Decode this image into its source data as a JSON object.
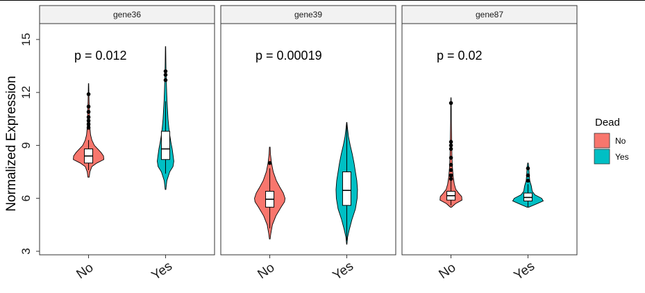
{
  "chart_data": {
    "type": "violin",
    "ylabel": "Normalized Expression",
    "ylim": [
      2.8,
      15.9
    ],
    "yticks": [
      3,
      6,
      9,
      12,
      15
    ],
    "categories": [
      "No",
      "Yes"
    ],
    "legend": {
      "title": "Dead",
      "position": "right",
      "items": [
        {
          "label": "No",
          "color": "#F8766D"
        },
        {
          "label": "Yes",
          "color": "#00BFC4"
        }
      ]
    },
    "panels": [
      {
        "title": "gene36",
        "annotation": "p = 0.012",
        "groups": [
          {
            "category": "No",
            "color": "#F8766D",
            "violin": [
              [
                7.2,
                0.04
              ],
              [
                7.5,
                0.08
              ],
              [
                7.8,
                0.2
              ],
              [
                8.0,
                0.5
              ],
              [
                8.2,
                0.92
              ],
              [
                8.4,
                0.9
              ],
              [
                8.6,
                0.75
              ],
              [
                8.8,
                0.55
              ],
              [
                9.0,
                0.35
              ],
              [
                9.3,
                0.2
              ],
              [
                9.6,
                0.12
              ],
              [
                10.0,
                0.08
              ],
              [
                10.5,
                0.06
              ],
              [
                11.0,
                0.05
              ],
              [
                11.5,
                0.03
              ],
              [
                12.0,
                0.02
              ],
              [
                12.5,
                0.01
              ]
            ],
            "box": {
              "q1": 8.0,
              "median": 8.4,
              "q3": 8.8,
              "whisker_low": 7.6,
              "whisker_high": 9.3
            },
            "outliers": [
              10.0,
              10.2,
              10.4,
              10.6,
              10.9,
              11.2,
              11.9
            ]
          },
          {
            "category": "Yes",
            "color": "#00BFC4",
            "violin": [
              [
                6.5,
                0.02
              ],
              [
                7.0,
                0.08
              ],
              [
                7.5,
                0.25
              ],
              [
                7.8,
                0.45
              ],
              [
                8.1,
                0.5
              ],
              [
                8.4,
                0.46
              ],
              [
                8.8,
                0.4
              ],
              [
                9.2,
                0.32
              ],
              [
                9.6,
                0.25
              ],
              [
                10.0,
                0.2
              ],
              [
                10.5,
                0.15
              ],
              [
                11.0,
                0.12
              ],
              [
                11.5,
                0.09
              ],
              [
                12.0,
                0.07
              ],
              [
                12.6,
                0.05
              ],
              [
                13.2,
                0.03
              ],
              [
                13.8,
                0.02
              ],
              [
                14.6,
                0.01
              ]
            ],
            "box": {
              "q1": 8.2,
              "median": 8.8,
              "q3": 9.8,
              "whisker_low": 7.4,
              "whisker_high": 11.5
            },
            "outliers": [
              12.7,
              13.0,
              13.2
            ]
          }
        ]
      },
      {
        "title": "gene39",
        "annotation": "p = 0.00019",
        "groups": [
          {
            "category": "No",
            "color": "#F8766D",
            "violin": [
              [
                3.7,
                0.02
              ],
              [
                4.0,
                0.06
              ],
              [
                4.5,
                0.15
              ],
              [
                5.0,
                0.35
              ],
              [
                5.5,
                0.65
              ],
              [
                5.8,
                0.85
              ],
              [
                6.0,
                0.88
              ],
              [
                6.3,
                0.78
              ],
              [
                6.6,
                0.6
              ],
              [
                7.0,
                0.38
              ],
              [
                7.5,
                0.2
              ],
              [
                8.0,
                0.1
              ],
              [
                8.5,
                0.04
              ],
              [
                8.9,
                0.02
              ]
            ],
            "box": {
              "q1": 5.5,
              "median": 5.95,
              "q3": 6.4,
              "whisker_low": 4.3,
              "whisker_high": 7.7
            },
            "outliers": [
              8.0
            ]
          },
          {
            "category": "Yes",
            "color": "#00BFC4",
            "violin": [
              [
                3.4,
                0.01
              ],
              [
                3.8,
                0.05
              ],
              [
                4.2,
                0.14
              ],
              [
                4.8,
                0.3
              ],
              [
                5.4,
                0.5
              ],
              [
                6.0,
                0.6
              ],
              [
                6.5,
                0.62
              ],
              [
                7.0,
                0.58
              ],
              [
                7.5,
                0.5
              ],
              [
                8.0,
                0.42
              ],
              [
                8.5,
                0.32
              ],
              [
                9.0,
                0.2
              ],
              [
                9.5,
                0.1
              ],
              [
                10.0,
                0.04
              ],
              [
                10.3,
                0.01
              ]
            ],
            "box": {
              "q1": 5.6,
              "median": 6.45,
              "q3": 7.5,
              "whisker_low": 3.6,
              "whisker_high": 10.2
            },
            "outliers": []
          }
        ]
      },
      {
        "title": "gene87",
        "annotation": "p = 0.02",
        "groups": [
          {
            "category": "No",
            "color": "#F8766D",
            "violin": [
              [
                5.5,
                0.04
              ],
              [
                5.7,
                0.3
              ],
              [
                5.9,
                0.72
              ],
              [
                6.1,
                0.7
              ],
              [
                6.3,
                0.5
              ],
              [
                6.5,
                0.32
              ],
              [
                6.8,
                0.22
              ],
              [
                7.2,
                0.15
              ],
              [
                7.6,
                0.11
              ],
              [
                8.0,
                0.08
              ],
              [
                8.5,
                0.06
              ],
              [
                9.0,
                0.05
              ],
              [
                9.5,
                0.04
              ],
              [
                10.0,
                0.03
              ],
              [
                10.5,
                0.02
              ],
              [
                11.0,
                0.02
              ],
              [
                11.7,
                0.01
              ]
            ],
            "box": {
              "q1": 5.9,
              "median": 6.15,
              "q3": 6.4,
              "whisker_low": 5.6,
              "whisker_high": 7.0
            },
            "outliers": [
              7.1,
              7.3,
              7.6,
              7.9,
              8.3,
              8.8,
              9.0,
              9.2,
              11.4
            ]
          },
          {
            "category": "Yes",
            "color": "#00BFC4",
            "violin": [
              [
                5.5,
                0.06
              ],
              [
                5.7,
                0.6
              ],
              [
                5.85,
                1.0
              ],
              [
                6.0,
                0.9
              ],
              [
                6.2,
                0.45
              ],
              [
                6.4,
                0.28
              ],
              [
                6.7,
                0.22
              ],
              [
                7.0,
                0.12
              ],
              [
                7.4,
                0.08
              ],
              [
                7.8,
                0.05
              ],
              [
                8.0,
                0.02
              ]
            ],
            "box": {
              "q1": 5.85,
              "median": 6.05,
              "q3": 6.3,
              "whisker_low": 5.5,
              "whisker_high": 6.8
            },
            "outliers": [
              7.0,
              7.3,
              7.7
            ]
          }
        ]
      }
    ]
  }
}
